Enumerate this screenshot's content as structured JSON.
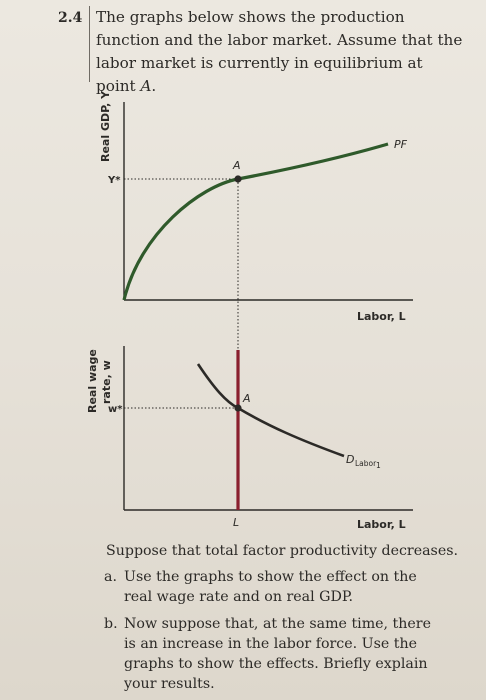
{
  "question": {
    "number": "2.4",
    "intro_part1": "The graphs below shows the production function and the labor market. Assume that the labor market is currently in equilibrium at point ",
    "intro_point": "A",
    "intro_end": "."
  },
  "top_graph": {
    "y_axis_label": "Real GDP, Y",
    "y_tick": "Y*",
    "x_axis_label": "Labor, L",
    "curve_label": "PF",
    "point_label": "A"
  },
  "bottom_graph": {
    "y_axis_label_line1": "Real wage",
    "y_axis_label_line2": "rate, w",
    "y_tick": "w*",
    "x_tick": "L",
    "x_axis_label": "Labor, L",
    "demand_label": "D",
    "demand_subscript": "Labor",
    "demand_suffix": "1",
    "point_label": "A"
  },
  "body": {
    "lead": "Suppose that total factor productivity decreases.",
    "item_a_letter": "a.",
    "item_a_text": "Use the graphs to show the effect on the real wage rate and on real GDP.",
    "item_b_letter": "b.",
    "item_b_text": "Now suppose that, at the same time, there is an increase in the labor force. Use the graphs to show the effects. Briefly explain your results."
  },
  "colors": {
    "curve": "#2f5a2b",
    "supply_line": "#8a1f2e",
    "ink": "#2c2a27"
  }
}
